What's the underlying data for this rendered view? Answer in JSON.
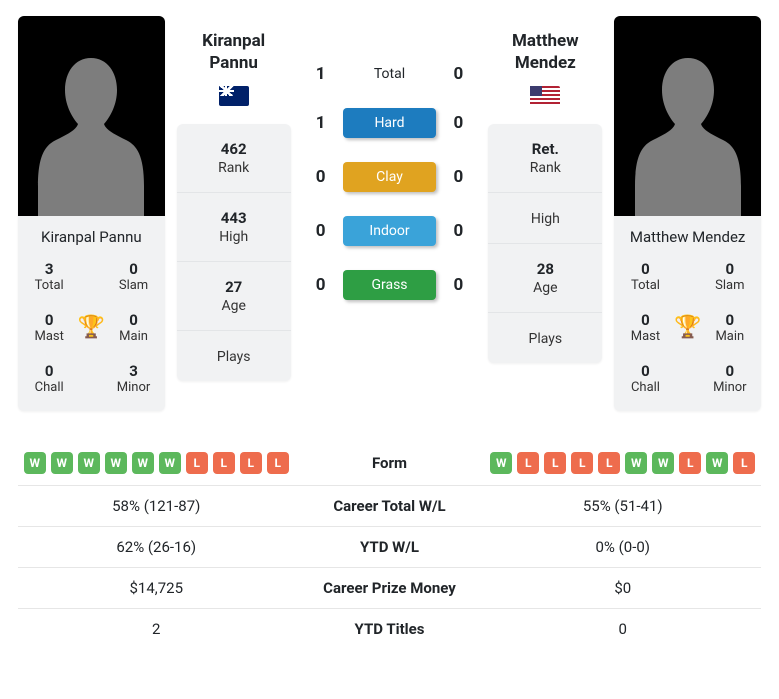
{
  "colors": {
    "hard": "#1d7cbf",
    "clay": "#e0a320",
    "indoor": "#3aa3d9",
    "grass": "#2e9e44",
    "win_badge": "#5cb85c",
    "loss_badge": "#ee6c4d",
    "card_bg": "#f1f2f3",
    "trophy": "#2b6cb0"
  },
  "player1": {
    "name": "Kiranpal Pannu",
    "flag": "nz",
    "titles": {
      "total": {
        "v": "3",
        "l": "Total"
      },
      "slam": {
        "v": "0",
        "l": "Slam"
      },
      "mast": {
        "v": "0",
        "l": "Mast"
      },
      "main": {
        "v": "0",
        "l": "Main"
      },
      "chall": {
        "v": "0",
        "l": "Chall"
      },
      "minor": {
        "v": "3",
        "l": "Minor"
      }
    },
    "stats": {
      "rank": {
        "v": "462",
        "l": "Rank"
      },
      "high": {
        "v": "443",
        "l": "High"
      },
      "age": {
        "v": "27",
        "l": "Age"
      },
      "plays": {
        "v": "",
        "l": "Plays"
      }
    }
  },
  "player2": {
    "name": "Matthew Mendez",
    "flag": "us",
    "titles": {
      "total": {
        "v": "0",
        "l": "Total"
      },
      "slam": {
        "v": "0",
        "l": "Slam"
      },
      "mast": {
        "v": "0",
        "l": "Mast"
      },
      "main": {
        "v": "0",
        "l": "Main"
      },
      "chall": {
        "v": "0",
        "l": "Chall"
      },
      "minor": {
        "v": "0",
        "l": "Minor"
      }
    },
    "stats": {
      "rank": {
        "v": "Ret.",
        "l": "Rank"
      },
      "high": {
        "v": "",
        "l": "High"
      },
      "age": {
        "v": "28",
        "l": "Age"
      },
      "plays": {
        "v": "",
        "l": "Plays"
      }
    }
  },
  "h2h": {
    "total": {
      "p1": "1",
      "label": "Total",
      "p2": "0"
    },
    "hard": {
      "p1": "1",
      "label": "Hard",
      "p2": "0"
    },
    "clay": {
      "p1": "0",
      "label": "Clay",
      "p2": "0"
    },
    "indoor": {
      "p1": "0",
      "label": "Indoor",
      "p2": "0"
    },
    "grass": {
      "p1": "0",
      "label": "Grass",
      "p2": "0"
    }
  },
  "compare": {
    "form": {
      "label": "Form",
      "p1": [
        "W",
        "W",
        "W",
        "W",
        "W",
        "W",
        "L",
        "L",
        "L",
        "L"
      ],
      "p2": [
        "W",
        "L",
        "L",
        "L",
        "L",
        "W",
        "W",
        "L",
        "W",
        "L"
      ]
    },
    "career_wl": {
      "label": "Career Total W/L",
      "p1": "58% (121-87)",
      "p2": "55% (51-41)"
    },
    "ytd_wl": {
      "label": "YTD W/L",
      "p1": "62% (26-16)",
      "p2": "0% (0-0)"
    },
    "prize": {
      "label": "Career Prize Money",
      "p1": "$14,725",
      "p2": "$0"
    },
    "ytd_titles": {
      "label": "YTD Titles",
      "p1": "2",
      "p2": "0"
    }
  }
}
